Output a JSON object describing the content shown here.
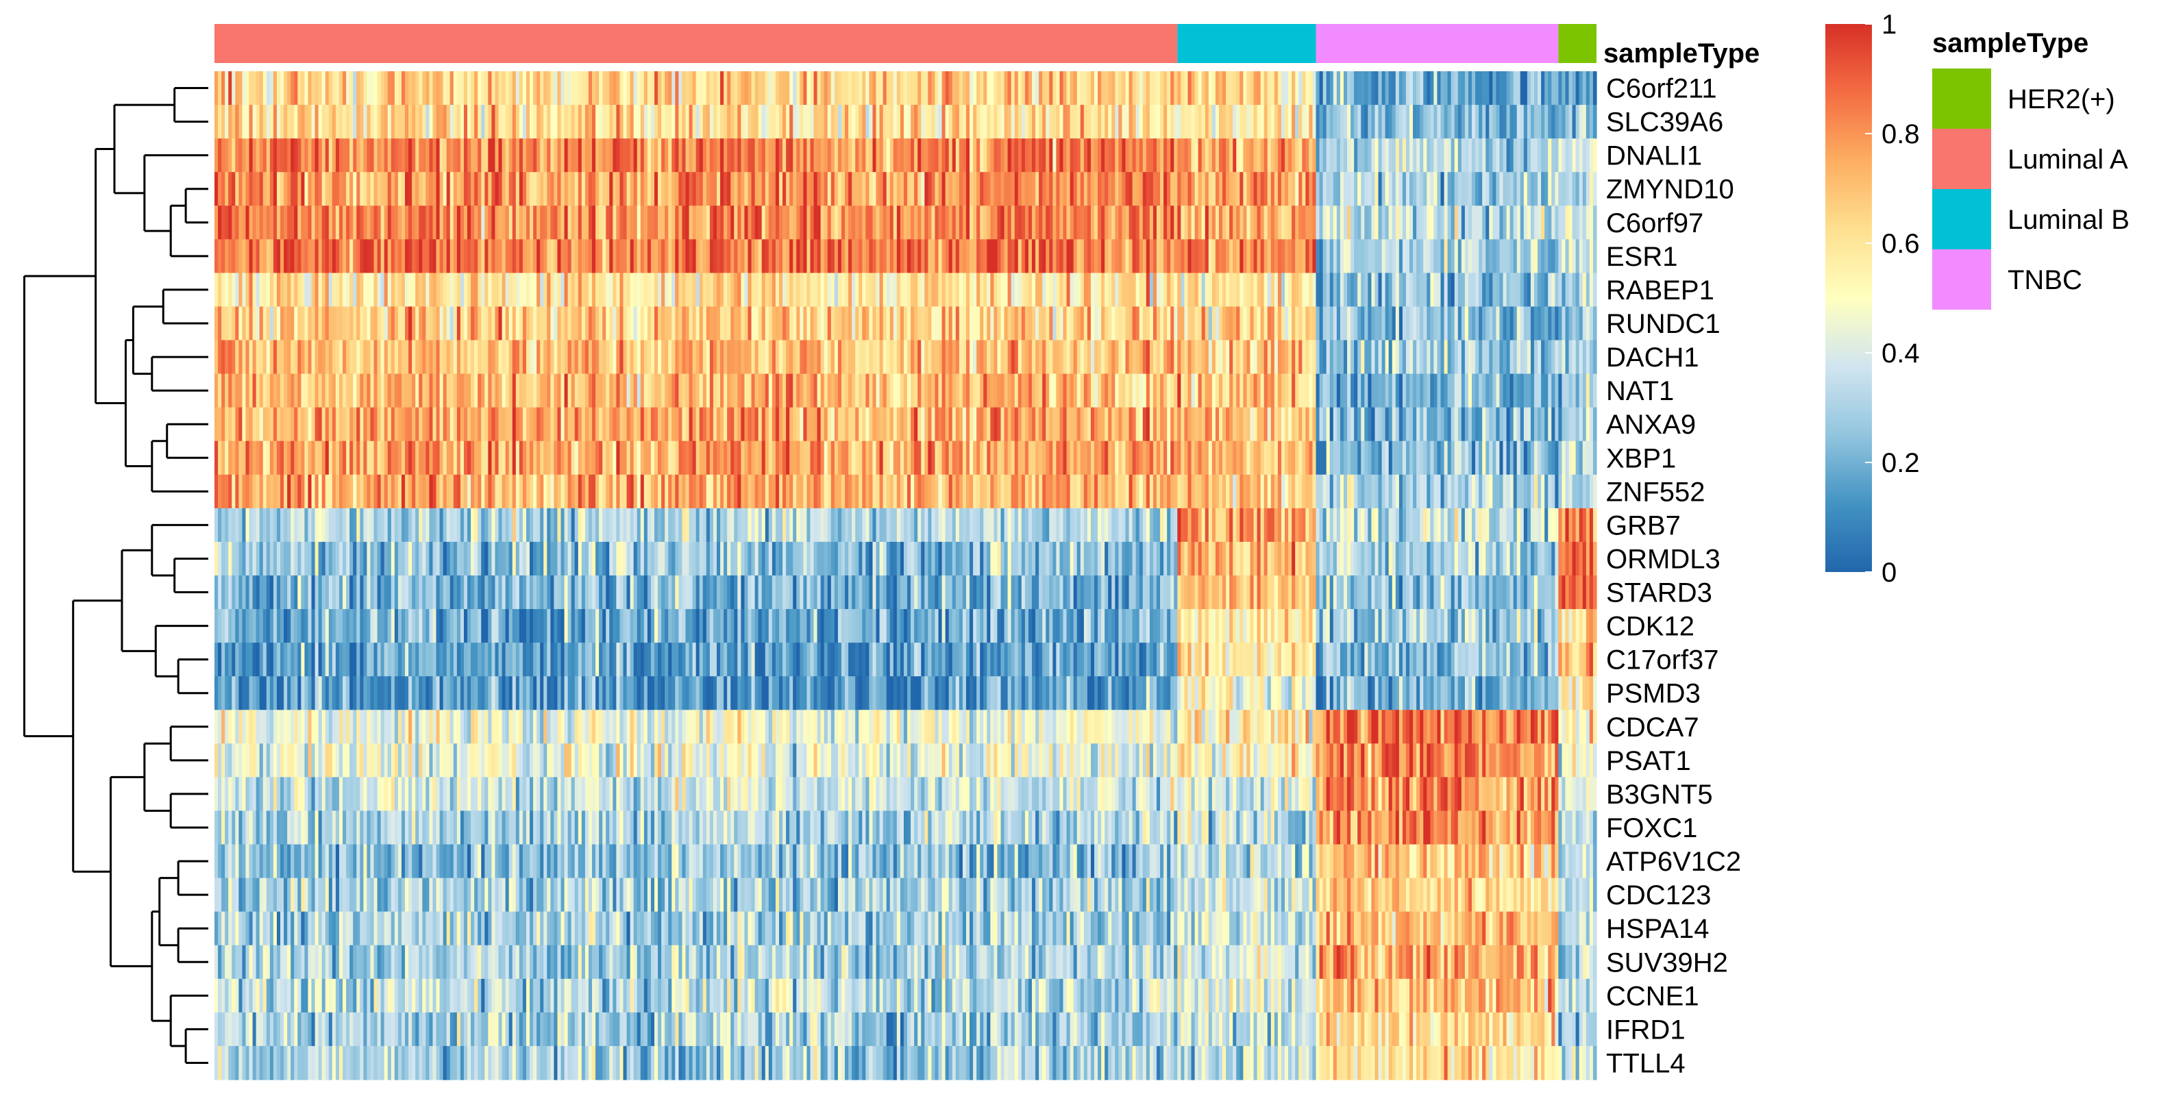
{
  "chart_data": {
    "type": "heatmap",
    "title": "",
    "annotation_title": "sampleType",
    "value_range": [
      0,
      1
    ],
    "colorbar_ticks": [
      "1",
      "0.8",
      "0.6",
      "0.4",
      "0.2",
      "0"
    ],
    "colorscale": [
      "#2166AC",
      "#4393C3",
      "#92C5DE",
      "#D1E5F0",
      "#FFFFBF",
      "#FEE090",
      "#FDAE61",
      "#F46D43",
      "#D73027"
    ],
    "sample_groups": [
      {
        "name": "Luminal A",
        "count": 278,
        "color": "#F8766D"
      },
      {
        "name": "Luminal B",
        "count": 40,
        "color": "#00C1D5"
      },
      {
        "name": "TNBC",
        "count": 70,
        "color": "#F28BFF"
      },
      {
        "name": "HER2(+)",
        "count": 11,
        "color": "#7CC400"
      }
    ],
    "legend_order": [
      "HER2(+)",
      "Luminal A",
      "Luminal B",
      "TNBC"
    ],
    "genes": [
      "C6orf211",
      "SLC39A6",
      "DNALI1",
      "ZMYND10",
      "C6orf97",
      "ESR1",
      "RABEP1",
      "RUNDC1",
      "DACH1",
      "NAT1",
      "ANXA9",
      "XBP1",
      "ZNF552",
      "GRB7",
      "ORMDL3",
      "STARD3",
      "CDK12",
      "C17orf37",
      "PSMD3",
      "CDCA7",
      "PSAT1",
      "B3GNT5",
      "FOXC1",
      "ATP6V1C2",
      "CDC123",
      "HSPA14",
      "SUV39H2",
      "CCNE1",
      "IFRD1",
      "TTLL4"
    ],
    "gene_clusters": [
      {
        "name": "luminal",
        "genes": [
          "C6orf211",
          "SLC39A6",
          "DNALI1",
          "ZMYND10",
          "C6orf97",
          "ESR1",
          "RABEP1",
          "RUNDC1",
          "DACH1",
          "NAT1",
          "ANXA9",
          "XBP1",
          "ZNF552"
        ]
      },
      {
        "name": "her2",
        "genes": [
          "GRB7",
          "ORMDL3",
          "STARD3",
          "CDK12",
          "C17orf37",
          "PSMD3"
        ]
      },
      {
        "name": "basal",
        "genes": [
          "CDCA7",
          "PSAT1",
          "B3GNT5",
          "FOXC1",
          "ATP6V1C2",
          "CDC123",
          "HSPA14",
          "SUV39H2",
          "CCNE1",
          "IFRD1",
          "TTLL4"
        ]
      }
    ],
    "group_mean_values": {
      "C6orf211": [
        0.63,
        0.62,
        0.18,
        0.22
      ],
      "SLC39A6": [
        0.62,
        0.6,
        0.22,
        0.24
      ],
      "DNALI1": [
        0.83,
        0.78,
        0.32,
        0.4
      ],
      "ZMYND10": [
        0.8,
        0.76,
        0.3,
        0.36
      ],
      "C6orf97": [
        0.82,
        0.78,
        0.34,
        0.4
      ],
      "ESR1": [
        0.86,
        0.82,
        0.3,
        0.38
      ],
      "RABEP1": [
        0.6,
        0.58,
        0.24,
        0.3
      ],
      "RUNDC1": [
        0.66,
        0.62,
        0.26,
        0.3
      ],
      "DACH1": [
        0.7,
        0.66,
        0.3,
        0.32
      ],
      "NAT1": [
        0.72,
        0.7,
        0.22,
        0.26
      ],
      "ANXA9": [
        0.74,
        0.7,
        0.24,
        0.3
      ],
      "XBP1": [
        0.76,
        0.72,
        0.26,
        0.34
      ],
      "ZNF552": [
        0.74,
        0.7,
        0.3,
        0.34
      ],
      "GRB7": [
        0.32,
        0.78,
        0.36,
        0.9
      ],
      "ORMDL3": [
        0.26,
        0.74,
        0.3,
        0.86
      ],
      "STARD3": [
        0.22,
        0.72,
        0.26,
        0.88
      ],
      "CDK12": [
        0.2,
        0.56,
        0.26,
        0.62
      ],
      "C17orf37": [
        0.16,
        0.58,
        0.24,
        0.7
      ],
      "PSMD3": [
        0.14,
        0.5,
        0.2,
        0.6
      ],
      "CDCA7": [
        0.46,
        0.58,
        0.86,
        0.5
      ],
      "PSAT1": [
        0.44,
        0.56,
        0.82,
        0.48
      ],
      "B3GNT5": [
        0.38,
        0.42,
        0.8,
        0.44
      ],
      "FOXC1": [
        0.32,
        0.4,
        0.82,
        0.4
      ],
      "ATP6V1C2": [
        0.24,
        0.34,
        0.68,
        0.38
      ],
      "CDC123": [
        0.3,
        0.38,
        0.66,
        0.36
      ],
      "HSPA14": [
        0.3,
        0.4,
        0.7,
        0.4
      ],
      "SUV39H2": [
        0.3,
        0.42,
        0.74,
        0.36
      ],
      "CCNE1": [
        0.34,
        0.44,
        0.7,
        0.4
      ],
      "IFRD1": [
        0.3,
        0.4,
        0.62,
        0.36
      ],
      "TTLL4": [
        0.3,
        0.38,
        0.58,
        0.34
      ]
    },
    "dendrogram": {
      "merges": [
        [
          0,
          1,
          0.18
        ],
        [
          3,
          4,
          0.2
        ],
        [
          30,
          5,
          0.32
        ],
        [
          2,
          31,
          0.43
        ],
        [
          29,
          32,
          0.53
        ],
        [
          6,
          7,
          0.26
        ],
        [
          8,
          9,
          0.36
        ],
        [
          10,
          11,
          0.28
        ],
        [
          36,
          12,
          0.44
        ],
        [
          35,
          37,
          0.5
        ],
        [
          34,
          38,
          0.56
        ],
        [
          33,
          39,
          0.7
        ],
        [
          14,
          15,
          0.2
        ],
        [
          13,
          41,
          0.34
        ],
        [
          16,
          17,
          0.32
        ],
        [
          43,
          18,
          0.43
        ],
        [
          42,
          44,
          0.52
        ],
        [
          19,
          20,
          0.18
        ],
        [
          21,
          22,
          0.26
        ],
        [
          46,
          47,
          0.42
        ],
        [
          23,
          24,
          0.24
        ],
        [
          25,
          26,
          0.2
        ],
        [
          49,
          50,
          0.4
        ],
        [
          27,
          28,
          0.22
        ],
        [
          52,
          29,
          0.0
        ],
        [
          52,
          53,
          0.0
        ]
      ]
    }
  }
}
